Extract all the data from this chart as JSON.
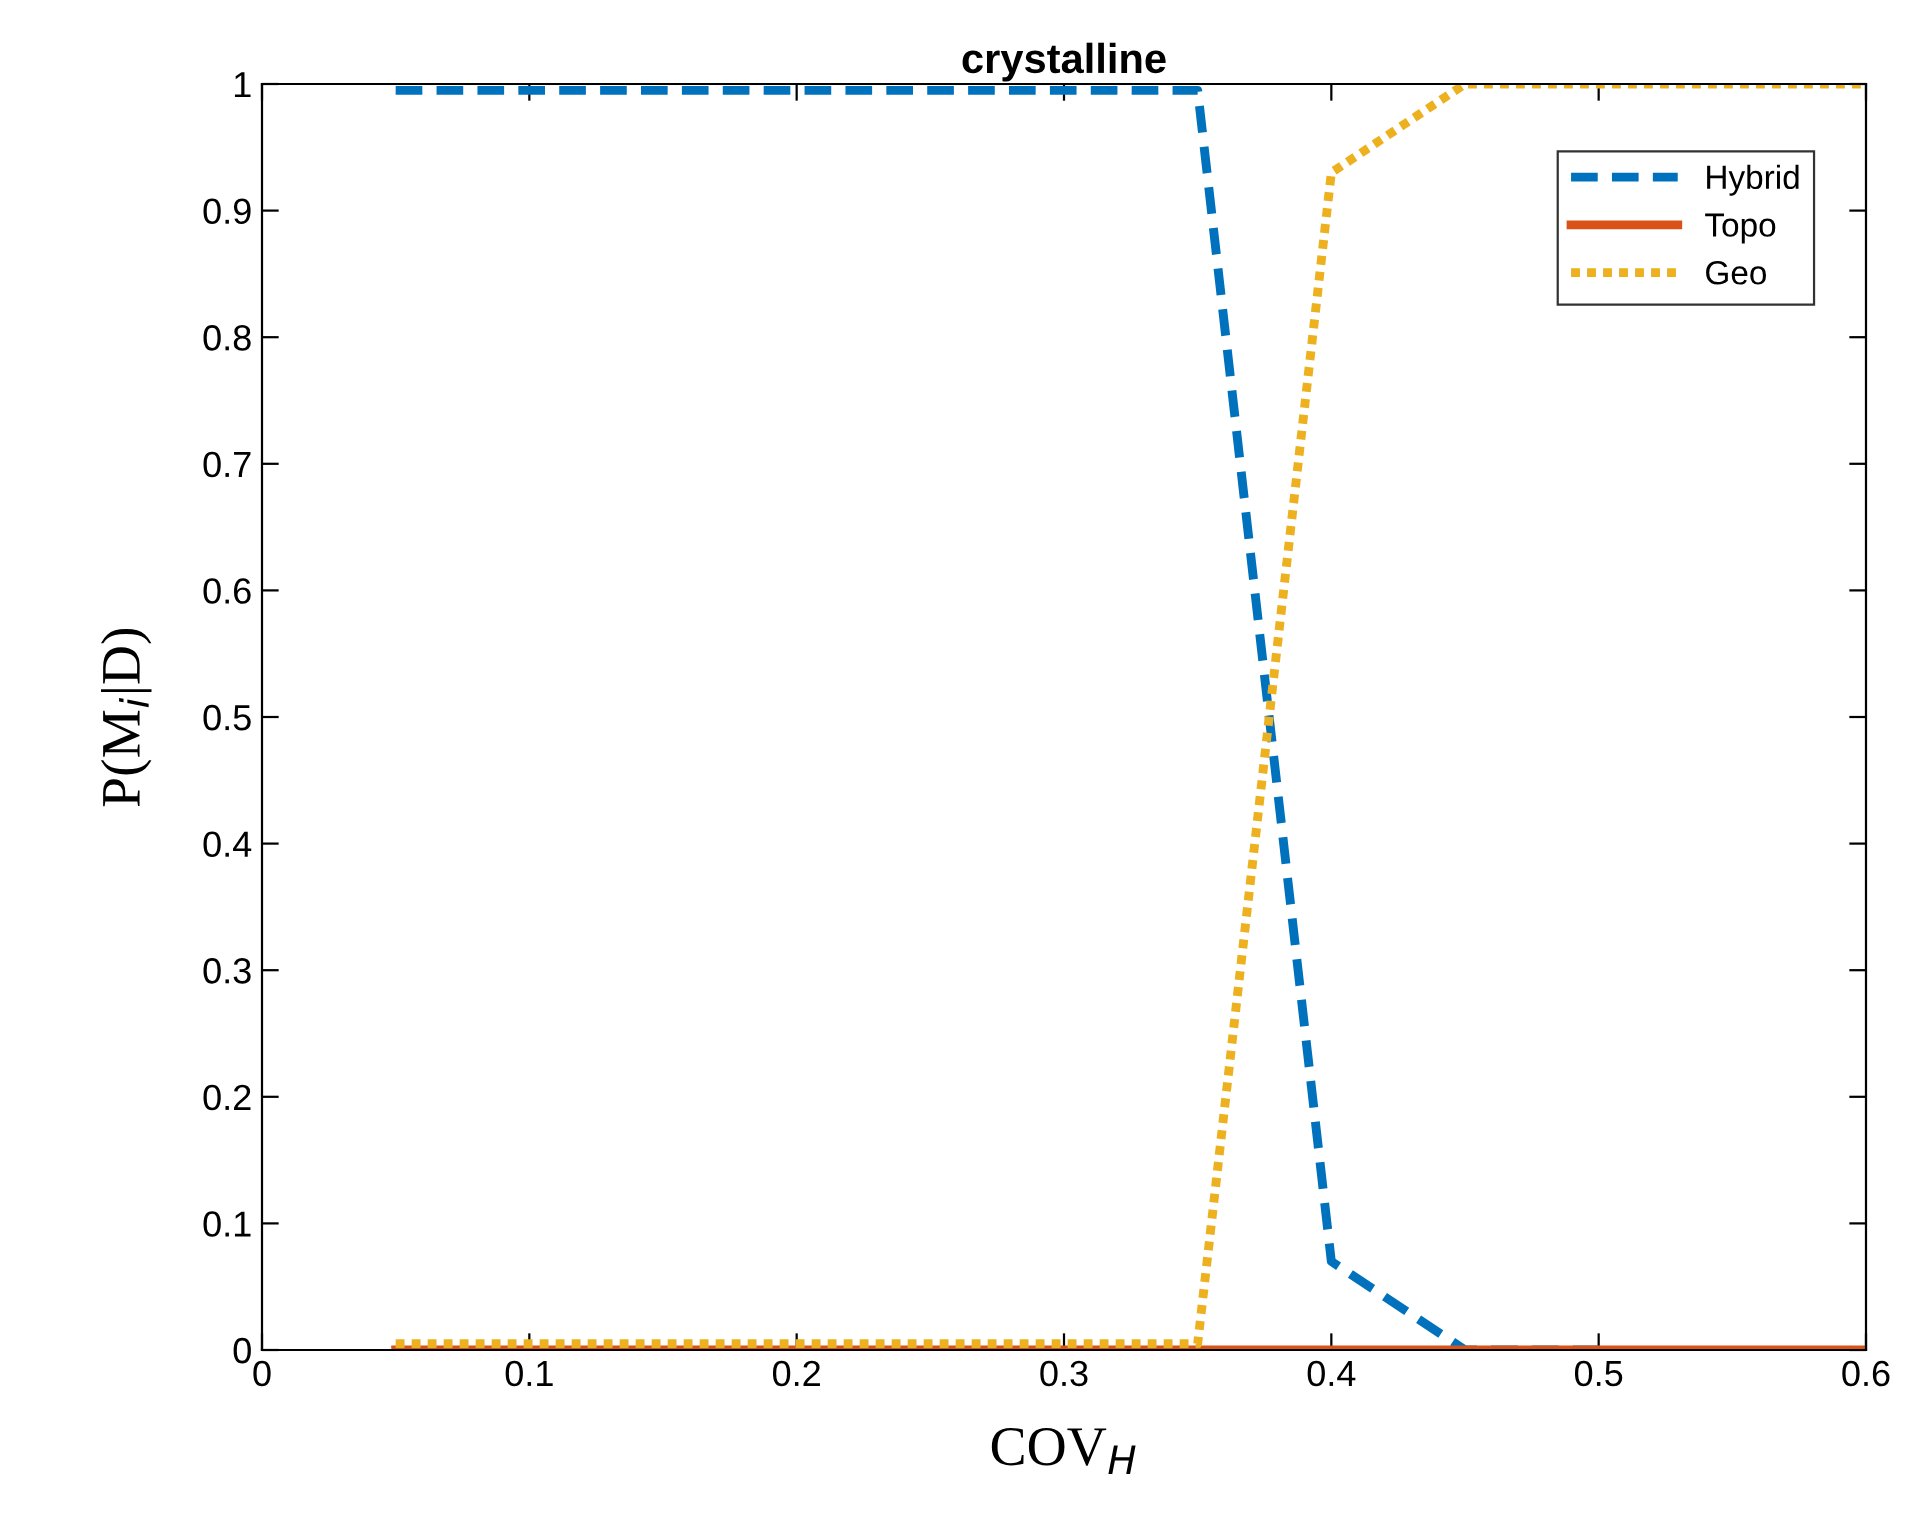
{
  "chart_data": {
    "type": "line",
    "title": "crystalline",
    "xlabel": "COV$_{H}$",
    "ylabel": "P(M$_{i}$|D)",
    "x": [
      0.05,
      0.1,
      0.15,
      0.2,
      0.25,
      0.3,
      0.35,
      0.4,
      0.45,
      0.5,
      0.55,
      0.6
    ],
    "series": [
      {
        "name": "Hybrid",
        "color": "#0072bd",
        "line_style": "dashed",
        "values": [
          0.995,
          0.995,
          0.995,
          0.995,
          0.995,
          0.995,
          0.995,
          0.07,
          0,
          0,
          null,
          null
        ]
      },
      {
        "name": "Topo",
        "color": "#d95319",
        "line_style": "solid",
        "values": [
          0,
          0,
          0,
          0,
          0,
          0,
          0,
          0,
          0,
          0,
          0,
          0
        ]
      },
      {
        "name": "Geo",
        "color": "#edb120",
        "line_style": "dotted",
        "values": [
          0.005,
          0.005,
          0.005,
          0.005,
          0.005,
          0.005,
          0.005,
          0.93,
          1,
          1,
          1,
          1
        ]
      }
    ],
    "xlim": [
      0,
      0.6
    ],
    "ylim": [
      0,
      1
    ],
    "xticks": [
      0,
      0.1,
      0.2,
      0.3,
      0.4,
      0.5,
      0.6
    ],
    "yticks": [
      0,
      0.1,
      0.2,
      0.3,
      0.4,
      0.5,
      0.6,
      0.7,
      0.8,
      0.9,
      1
    ],
    "legend": "top right",
    "grid": false,
    "marker": "none"
  }
}
